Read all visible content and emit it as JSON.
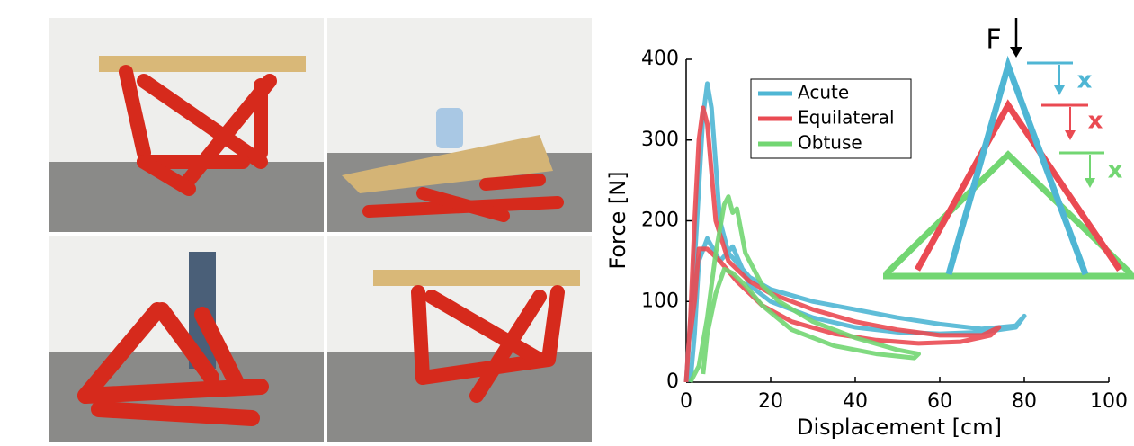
{
  "chart_data": {
    "type": "line",
    "xlabel": "Displacement [cm]",
    "ylabel": "Force [N]",
    "xlim": [
      0,
      100
    ],
    "xticks": [
      0,
      20,
      40,
      60,
      80,
      100
    ],
    "ylim": [
      0,
      400
    ],
    "yticks": [
      0,
      100,
      200,
      300,
      400
    ],
    "legend": "top-left",
    "annotations": [
      "F",
      "x",
      "x",
      "x"
    ],
    "series": [
      {
        "name": "Acute",
        "color": "#4fb6d4",
        "x": [
          0,
          2,
          4,
          5,
          6,
          8,
          10,
          15,
          20,
          30,
          40,
          50,
          60,
          70,
          78,
          80,
          78,
          70,
          60,
          50,
          40,
          30,
          20,
          15,
          11,
          8,
          5,
          3,
          2,
          1
        ],
        "values": [
          0,
          150,
          330,
          370,
          340,
          200,
          160,
          130,
          115,
          100,
          90,
          80,
          72,
          66,
          70,
          82,
          68,
          62,
          60,
          62,
          68,
          80,
          100,
          120,
          168,
          150,
          178,
          150,
          60,
          0
        ]
      },
      {
        "name": "Equilateral",
        "color": "#ea4a52",
        "x": [
          0,
          1,
          2,
          3,
          4,
          5,
          7,
          10,
          15,
          20,
          30,
          40,
          50,
          60,
          70,
          74,
          72,
          65,
          55,
          45,
          35,
          25,
          18,
          12,
          8,
          5,
          3,
          2,
          1
        ],
        "values": [
          0,
          80,
          200,
          300,
          340,
          320,
          200,
          150,
          125,
          110,
          90,
          75,
          65,
          58,
          58,
          68,
          58,
          50,
          48,
          52,
          60,
          75,
          95,
          125,
          150,
          165,
          165,
          100,
          60
        ]
      },
      {
        "name": "Obtuse",
        "color": "#72d672",
        "x": [
          1,
          3,
          5,
          7,
          9,
          10,
          11,
          12,
          14,
          18,
          22,
          30,
          40,
          50,
          55,
          54,
          45,
          35,
          25,
          18,
          14,
          11,
          9,
          7,
          5,
          4
        ],
        "values": [
          0,
          20,
          80,
          160,
          220,
          230,
          210,
          215,
          160,
          120,
          100,
          75,
          55,
          40,
          35,
          30,
          35,
          45,
          65,
          95,
          120,
          135,
          140,
          110,
          60,
          10
        ]
      }
    ]
  }
}
